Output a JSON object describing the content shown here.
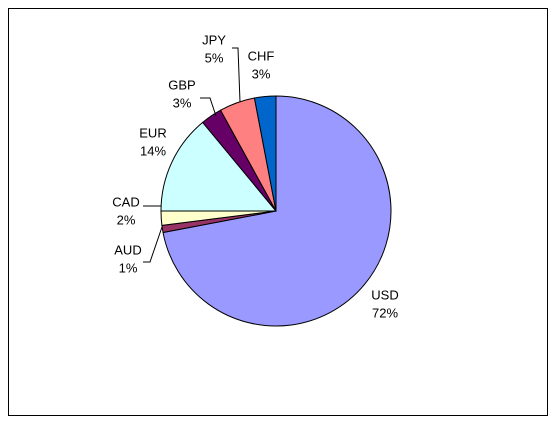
{
  "chart_data": {
    "type": "pie",
    "categories": [
      "USD",
      "AUD",
      "CAD",
      "EUR",
      "GBP",
      "JPY",
      "CHF"
    ],
    "values": [
      72,
      1,
      2,
      14,
      3,
      5,
      3
    ],
    "value_labels": [
      "72%",
      "1%",
      "2%",
      "14%",
      "3%",
      "5%",
      "3%"
    ],
    "colors": [
      "#9999ff",
      "#993366",
      "#ffffcc",
      "#ccffff",
      "#660066",
      "#ff8080",
      "#0066cc"
    ]
  }
}
